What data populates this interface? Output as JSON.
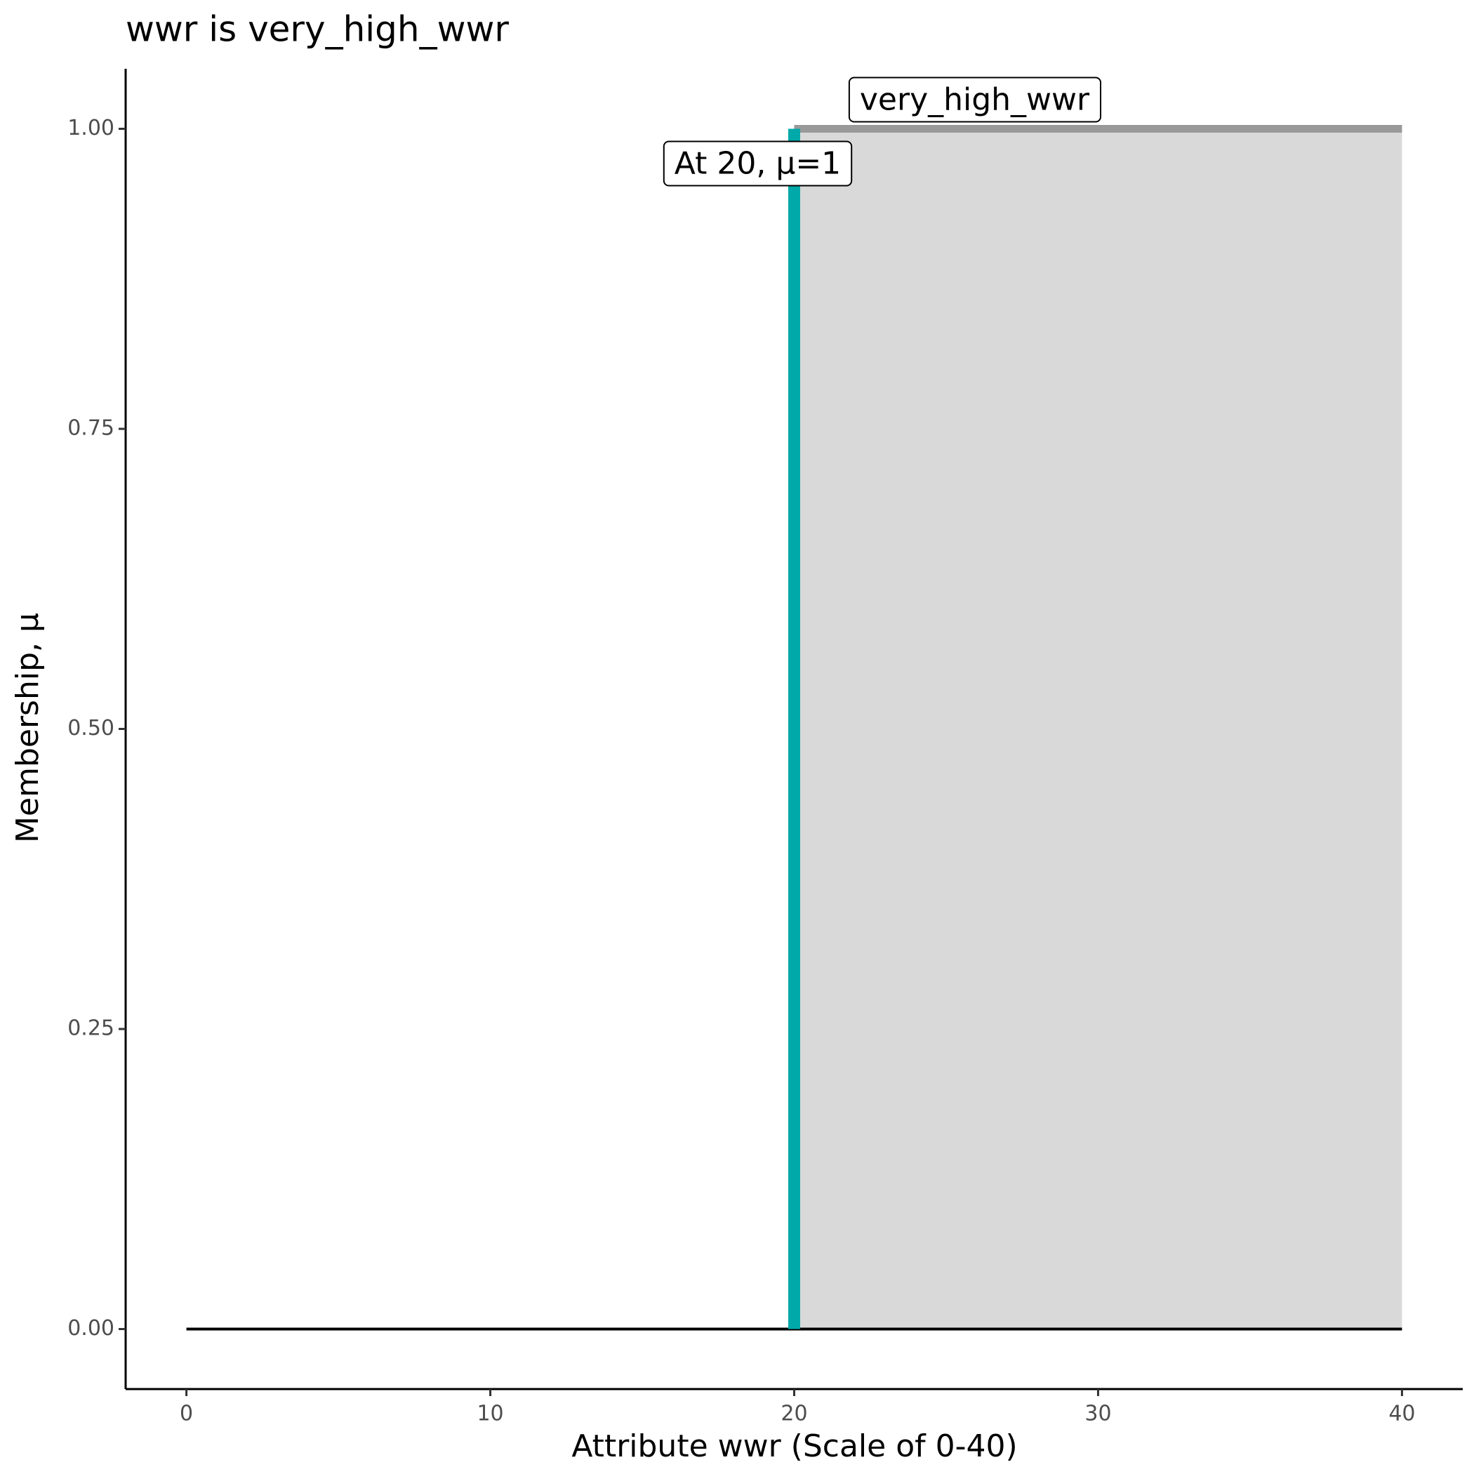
{
  "chart_data": {
    "type": "membership",
    "title": "wwr is very_high_wwr",
    "x_label": "Attribute wwr (Scale of 0-40)",
    "y_label": "Membership, μ",
    "xlim": [
      -2,
      42
    ],
    "xticks": [
      0,
      10,
      20,
      30,
      40
    ],
    "ylim": [
      -0.05,
      1.05
    ],
    "yticks": [
      {
        "value": 0,
        "label": "0.00"
      },
      {
        "value": 0.25,
        "label": "0.25"
      },
      {
        "value": 0.5,
        "label": "0.50"
      },
      {
        "value": 0.75,
        "label": "0.75"
      },
      {
        "value": 1,
        "label": "1.00"
      }
    ],
    "baseline": {
      "x": [
        0,
        40
      ],
      "values": [
        0,
        0
      ],
      "color": "#000000"
    },
    "membership": {
      "x": [
        20,
        40
      ],
      "values": [
        1,
        1
      ],
      "color": "#999999",
      "fill": "#d9d9d9",
      "label": "very_high_wwr"
    },
    "marker": {
      "x": 20,
      "values": [
        0,
        1
      ],
      "color": "#00a9a9",
      "label": "At 20, μ=1"
    }
  }
}
